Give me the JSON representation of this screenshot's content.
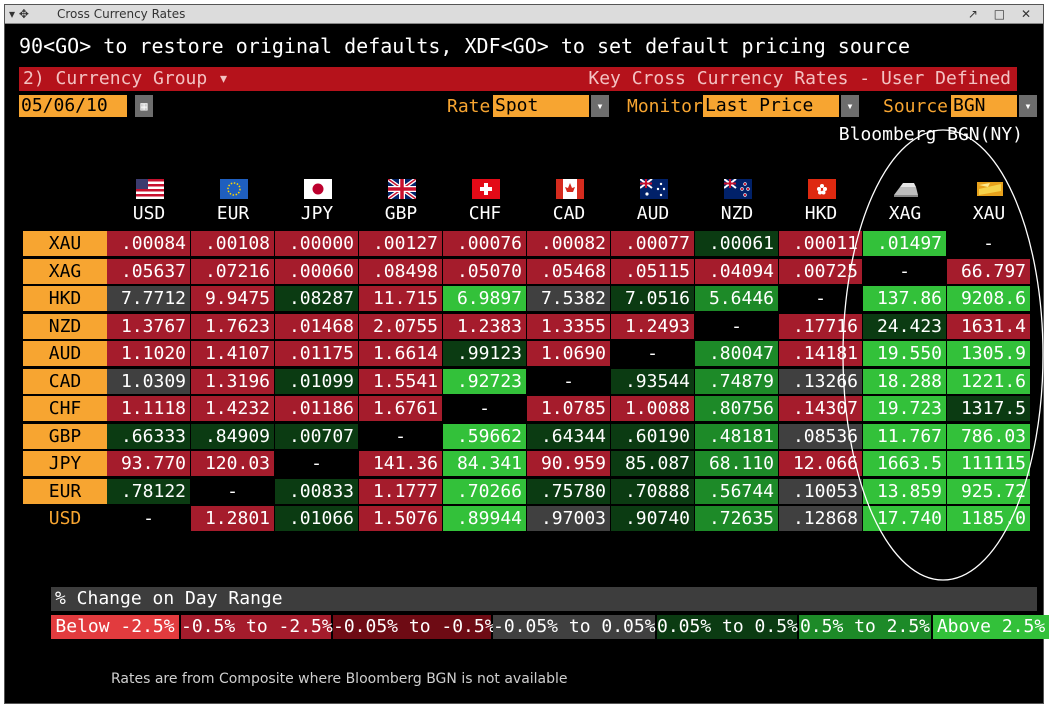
{
  "window": {
    "title": "Cross Currency Rates",
    "controls_left": "▾ ✥",
    "controls_right": "↗ □ ✕"
  },
  "command_line": "90<GO> to restore original defaults, XDF<GO> to set default pricing source",
  "header_bar": {
    "currency_group": "2) Currency Group ▾",
    "title": "Key Cross Currency Rates - User Defined"
  },
  "controls": {
    "date": "05/06/10",
    "rate_label": "Rate",
    "rate_value": "Spot",
    "monitor_label": "Monitor",
    "monitor_value": "Last Price w/",
    "source_label": "Source",
    "source_value": "BGN",
    "source_desc": "Bloomberg BGN(NY)"
  },
  "columns": [
    {
      "code": "USD",
      "flag": "us-flag-icon"
    },
    {
      "code": "EUR",
      "flag": "eu-flag-icon"
    },
    {
      "code": "JPY",
      "flag": "jp-flag-icon"
    },
    {
      "code": "GBP",
      "flag": "gb-flag-icon"
    },
    {
      "code": "CHF",
      "flag": "ch-flag-icon"
    },
    {
      "code": "CAD",
      "flag": "ca-flag-icon"
    },
    {
      "code": "AUD",
      "flag": "au-flag-icon"
    },
    {
      "code": "NZD",
      "flag": "nz-flag-icon"
    },
    {
      "code": "HKD",
      "flag": "hk-flag-icon"
    },
    {
      "code": "XAG",
      "flag": "silver-icon"
    },
    {
      "code": "XAU",
      "flag": "gold-icon"
    }
  ],
  "rows": [
    {
      "code": "XAU",
      "cells": [
        [
          ".00084",
          "red"
        ],
        [
          ".00108",
          "red"
        ],
        [
          ".00000",
          "red"
        ],
        [
          ".00127",
          "red"
        ],
        [
          ".00076",
          "red"
        ],
        [
          ".00082",
          "red"
        ],
        [
          ".00077",
          "red"
        ],
        [
          ".00061",
          "dkgreen"
        ],
        [
          ".00011",
          "red"
        ],
        [
          ".01497",
          "ltgreen"
        ],
        [
          "-",
          "none"
        ]
      ]
    },
    {
      "code": "XAG",
      "cells": [
        [
          ".05637",
          "red"
        ],
        [
          ".07216",
          "red"
        ],
        [
          ".00060",
          "red"
        ],
        [
          ".08498",
          "red"
        ],
        [
          ".05070",
          "red"
        ],
        [
          ".05468",
          "red"
        ],
        [
          ".05115",
          "red"
        ],
        [
          ".04094",
          "red"
        ],
        [
          ".00725",
          "red"
        ],
        [
          "-",
          "none"
        ],
        [
          "66.797",
          "red"
        ]
      ]
    },
    {
      "code": "HKD",
      "cells": [
        [
          "7.7712",
          "gray"
        ],
        [
          "9.9475",
          "red"
        ],
        [
          ".08287",
          "dkgreen"
        ],
        [
          "11.715",
          "red"
        ],
        [
          "6.9897",
          "ltgreen"
        ],
        [
          "7.5382",
          "gray"
        ],
        [
          "7.0516",
          "dkgreen"
        ],
        [
          "5.6446",
          "green"
        ],
        [
          "-",
          "none"
        ],
        [
          "137.86",
          "ltgreen"
        ],
        [
          "9208.6",
          "ltgreen"
        ]
      ]
    },
    {
      "code": "NZD",
      "cells": [
        [
          "1.3767",
          "red"
        ],
        [
          "1.7623",
          "red"
        ],
        [
          ".01468",
          "red"
        ],
        [
          "2.0755",
          "red"
        ],
        [
          "1.2383",
          "red"
        ],
        [
          "1.3355",
          "red"
        ],
        [
          "1.2493",
          "red"
        ],
        [
          "-",
          "none"
        ],
        [
          ".17716",
          "red"
        ],
        [
          "24.423",
          "dkgreen"
        ],
        [
          "1631.4",
          "red"
        ]
      ]
    },
    {
      "code": "AUD",
      "cells": [
        [
          "1.1020",
          "red"
        ],
        [
          "1.4107",
          "red"
        ],
        [
          ".01175",
          "red"
        ],
        [
          "1.6614",
          "red"
        ],
        [
          ".99123",
          "dkgreen"
        ],
        [
          "1.0690",
          "red"
        ],
        [
          "-",
          "none"
        ],
        [
          ".80047",
          "green"
        ],
        [
          ".14181",
          "red"
        ],
        [
          "19.550",
          "ltgreen"
        ],
        [
          "1305.9",
          "ltgreen"
        ]
      ]
    },
    {
      "code": "CAD",
      "cells": [
        [
          "1.0309",
          "gray"
        ],
        [
          "1.3196",
          "red"
        ],
        [
          ".01099",
          "dkgreen"
        ],
        [
          "1.5541",
          "red"
        ],
        [
          ".92723",
          "ltgreen"
        ],
        [
          "-",
          "none"
        ],
        [
          ".93544",
          "dkgreen"
        ],
        [
          ".74879",
          "green"
        ],
        [
          ".13266",
          "gray"
        ],
        [
          "18.288",
          "ltgreen"
        ],
        [
          "1221.6",
          "ltgreen"
        ]
      ]
    },
    {
      "code": "CHF",
      "cells": [
        [
          "1.1118",
          "red"
        ],
        [
          "1.4232",
          "red"
        ],
        [
          ".01186",
          "red"
        ],
        [
          "1.6761",
          "red"
        ],
        [
          "-",
          "none"
        ],
        [
          "1.0785",
          "red"
        ],
        [
          "1.0088",
          "red"
        ],
        [
          ".80756",
          "green"
        ],
        [
          ".14307",
          "red"
        ],
        [
          "19.723",
          "ltgreen"
        ],
        [
          "1317.5",
          "dkgreen"
        ]
      ]
    },
    {
      "code": "GBP",
      "cells": [
        [
          ".66333",
          "dkgreen"
        ],
        [
          ".84909",
          "dkgreen"
        ],
        [
          ".00707",
          "dkgreen"
        ],
        [
          "-",
          "none"
        ],
        [
          ".59662",
          "ltgreen"
        ],
        [
          ".64344",
          "dkgreen"
        ],
        [
          ".60190",
          "dkgreen"
        ],
        [
          ".48181",
          "green"
        ],
        [
          ".08536",
          "gray"
        ],
        [
          "11.767",
          "ltgreen"
        ],
        [
          "786.03",
          "ltgreen"
        ]
      ]
    },
    {
      "code": "JPY",
      "cells": [
        [
          "93.770",
          "red"
        ],
        [
          "120.03",
          "red"
        ],
        [
          "-",
          "none"
        ],
        [
          "141.36",
          "red"
        ],
        [
          "84.341",
          "ltgreen"
        ],
        [
          "90.959",
          "red"
        ],
        [
          "85.087",
          "dkgreen"
        ],
        [
          "68.110",
          "green"
        ],
        [
          "12.066",
          "red"
        ],
        [
          "1663.5",
          "ltgreen"
        ],
        [
          "111115",
          "ltgreen"
        ]
      ]
    },
    {
      "code": "EUR",
      "cells": [
        [
          ".78122",
          "dkgreen"
        ],
        [
          "-",
          "none"
        ],
        [
          ".00833",
          "dkgreen"
        ],
        [
          "1.1777",
          "red"
        ],
        [
          ".70266",
          "ltgreen"
        ],
        [
          ".75780",
          "dkgreen"
        ],
        [
          ".70888",
          "dkgreen"
        ],
        [
          ".56744",
          "green"
        ],
        [
          ".10053",
          "gray"
        ],
        [
          "13.859",
          "ltgreen"
        ],
        [
          "925.72",
          "ltgreen"
        ]
      ]
    },
    {
      "code": "USD",
      "cells": [
        [
          "-",
          "none"
        ],
        [
          "1.2801",
          "red"
        ],
        [
          ".01066",
          "dkgreen"
        ],
        [
          "1.5076",
          "red"
        ],
        [
          ".89944",
          "ltgreen"
        ],
        [
          ".97003",
          "gray"
        ],
        [
          ".90740",
          "dkgreen"
        ],
        [
          ".72635",
          "green"
        ],
        [
          ".12868",
          "gray"
        ],
        [
          "17.740",
          "ltgreen"
        ],
        [
          "1185.0",
          "ltgreen"
        ]
      ]
    }
  ],
  "legend": {
    "title": "% Change on Day Range",
    "items": [
      {
        "label": "Below -2.5%",
        "color": "#e23b3e"
      },
      {
        "label": "-0.5% to -2.5%",
        "color": "#a51c2c"
      },
      {
        "label": "-0.05% to -0.5%",
        "color": "#6e0b14"
      },
      {
        "label": "-0.05% to 0.05%",
        "color": "#404040"
      },
      {
        "label": "0.05% to 0.5%",
        "color": "#0b3b12"
      },
      {
        "label": "0.5% to 2.5%",
        "color": "#1d8a28"
      },
      {
        "label": "Above 2.5%",
        "color": "#33c13a"
      }
    ]
  },
  "footer_note": "Rates are from Composite where Bloomberg BGN is not available"
}
